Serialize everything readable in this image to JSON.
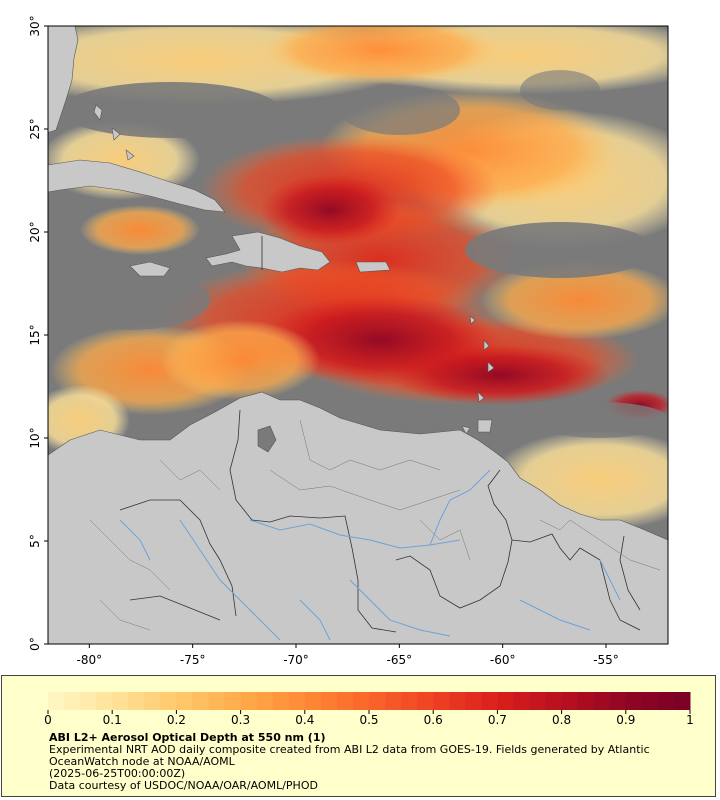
{
  "map": {
    "lon_range": [
      -82,
      -52
    ],
    "lat_range": [
      0,
      30
    ],
    "x_ticks": [
      {
        "value": -80,
        "label": "-80°"
      },
      {
        "value": -75,
        "label": "-75°"
      },
      {
        "value": -70,
        "label": "-70°"
      },
      {
        "value": -65,
        "label": "-65°"
      },
      {
        "value": -60,
        "label": "-60°"
      },
      {
        "value": -55,
        "label": "-55°"
      }
    ],
    "y_ticks": [
      {
        "value": 0,
        "label": "0°"
      },
      {
        "value": 5,
        "label": "5°"
      },
      {
        "value": 10,
        "label": "10°"
      },
      {
        "value": 15,
        "label": "15°"
      },
      {
        "value": 20,
        "label": "20°"
      },
      {
        "value": 25,
        "label": "25°"
      },
      {
        "value": 30,
        "label": "30°"
      }
    ],
    "colors": {
      "ocean_nodata": "#7a7a7a",
      "land": "#c8c8c8",
      "rivers": "#6fa2d8",
      "borders": "#333333"
    }
  },
  "colorbar": {
    "min": 0,
    "max": 1,
    "tick_labels": [
      "0",
      "0.1",
      "0.2",
      "0.3",
      "0.4",
      "0.5",
      "0.6",
      "0.7",
      "0.8",
      "0.9",
      "1"
    ],
    "colors": [
      "#fff7c7",
      "#ffe39a",
      "#ffc96b",
      "#ffab4a",
      "#ff8a35",
      "#f9652a",
      "#ef4123",
      "#d91f1c",
      "#b8101f",
      "#900624",
      "#7a0026"
    ]
  },
  "caption": {
    "title": "ABI L2+ Aerosol Optical Depth at 550 nm (1)",
    "description": "Experimental NRT AOD daily composite created from ABI L2 data from GOES-19. Fields generated by Atlantic OceanWatch node at NOAA/AOML",
    "time": "(2025-06-25T00:00:00Z)",
    "credit": "Data courtesy of USDOC/NOAA/OAR/AOML/PHOD"
  }
}
